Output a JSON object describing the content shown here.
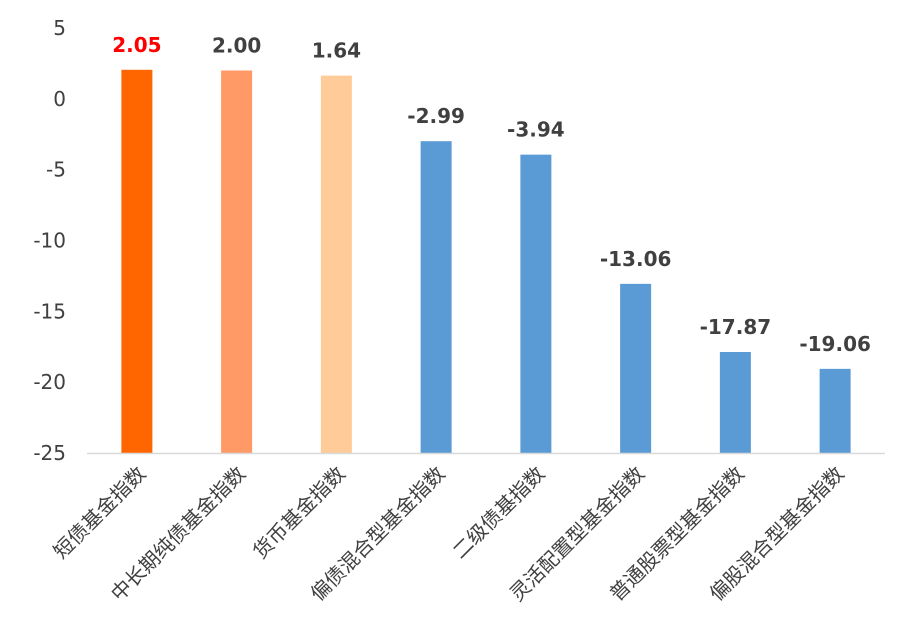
{
  "chart_data": {
    "type": "bar",
    "title": "",
    "xlabel": "",
    "ylabel": "",
    "categories": [
      "短债基金指数",
      "中长期纯债基金指数",
      "货币基金指数",
      "偏债混合型基金指数",
      "二级债基指数",
      "灵活配置型基金指数",
      "普通股票型基金指数",
      "偏股混合型基金指数"
    ],
    "values": [
      2.05,
      2.0,
      1.64,
      -2.99,
      -3.94,
      -13.06,
      -17.87,
      -19.06
    ],
    "data_labels": [
      "2.05",
      "2.00",
      "1.64",
      "-2.99",
      "-3.94",
      "-13.06",
      "-17.87",
      "-19.06"
    ],
    "ylim": [
      -25,
      5
    ],
    "yticks": [
      5,
      0,
      -5,
      -10,
      -15,
      -20,
      -25
    ],
    "ytick_labels": [
      "5",
      "0",
      "-5",
      "-10",
      "-15",
      "-20",
      "-25"
    ],
    "grid": false,
    "legend": "none",
    "bar_colors": [
      "#FF6600",
      "#FF9966",
      "#FFCC99",
      "#5B9BD5",
      "#5B9BD5",
      "#5B9BD5",
      "#5B9BD5",
      "#5B9BD5"
    ],
    "label_colors": [
      "#FF0000",
      "#404040",
      "#404040",
      "#404040",
      "#404040",
      "#404040",
      "#404040",
      "#404040"
    ],
    "axis_color": "#D9D9D9"
  }
}
